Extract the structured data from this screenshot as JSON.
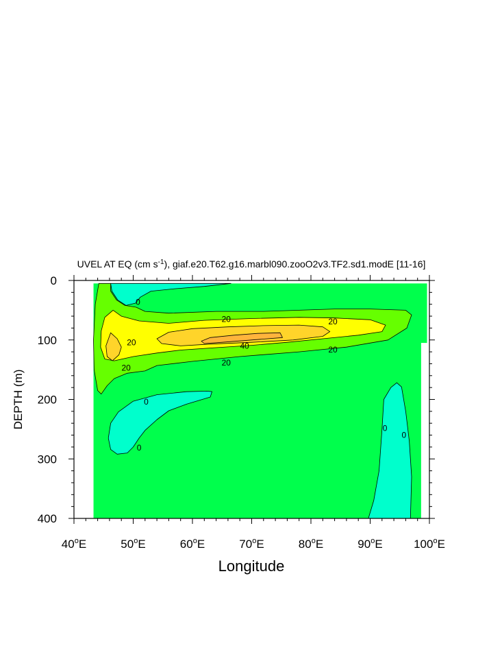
{
  "chart_data": {
    "type": "contour",
    "title_main": "UVEL AT EQ (cm s",
    "title_unit_exp": "-1",
    "title_rest": "), giaf.e20.T62.g16.marbl090.zooO2v3.TF2.sd1.modE [11-16]",
    "xlabel": "Longitude",
    "ylabel": "DEPTH (m)",
    "xlim": [
      40,
      100
    ],
    "ylim": [
      0,
      400
    ],
    "y_inverted": true,
    "x_ticks": [
      {
        "value": 40,
        "num": "40",
        "deg": "o",
        "hem": "E"
      },
      {
        "value": 50,
        "num": "50",
        "deg": "o",
        "hem": "E"
      },
      {
        "value": 60,
        "num": "60",
        "deg": "o",
        "hem": "E"
      },
      {
        "value": 70,
        "num": "70",
        "deg": "o",
        "hem": "E"
      },
      {
        "value": 80,
        "num": "80",
        "deg": "o",
        "hem": "E"
      },
      {
        "value": 90,
        "num": "90",
        "deg": "o",
        "hem": "E"
      },
      {
        "value": 100,
        "num": "100",
        "deg": "o",
        "hem": "E"
      }
    ],
    "y_ticks": [
      {
        "value": 0,
        "label": "0"
      },
      {
        "value": 100,
        "label": "100"
      },
      {
        "value": 200,
        "label": "200"
      },
      {
        "value": 300,
        "label": "300"
      },
      {
        "value": 400,
        "label": "400"
      }
    ],
    "data_extent": {
      "lon_min": 43.3,
      "lon_max": 99.6,
      "depth_top": 5
    },
    "fill_colors": {
      "negative": "#00ffcc",
      "zero_to_10": "#00ff4c",
      "10_to_20": "#66ff00",
      "20_to_30": "#ffff00",
      "30_to_40": "#ffd42a",
      "40_plus": "#ffb43c"
    },
    "regions": [
      {
        "level": "negative",
        "points": [
          [
            46.2,
            5
          ],
          [
            66.5,
            5
          ],
          [
            62,
            10
          ],
          [
            57,
            14
          ],
          [
            53,
            18
          ],
          [
            51.2,
            28
          ],
          [
            50.4,
            38
          ],
          [
            48.8,
            42
          ],
          [
            47.4,
            33
          ],
          [
            46.4,
            18
          ]
        ]
      },
      {
        "level": "negative",
        "points": [
          [
            50,
            203
          ],
          [
            54,
            192
          ],
          [
            59,
            187
          ],
          [
            62.5,
            186
          ],
          [
            63.3,
            187
          ],
          [
            63,
            196
          ],
          [
            59,
            208
          ],
          [
            56,
            219
          ],
          [
            54,
            234
          ],
          [
            52,
            252
          ],
          [
            51,
            265
          ],
          [
            50,
            280
          ],
          [
            49,
            290
          ],
          [
            47.3,
            292
          ],
          [
            46.2,
            284
          ],
          [
            45.8,
            265
          ],
          [
            46.2,
            240
          ],
          [
            47.5,
            221
          ]
        ]
      },
      {
        "level": "negative",
        "points": [
          [
            92.3,
            200
          ],
          [
            93.5,
            180
          ],
          [
            94.5,
            172
          ],
          [
            95.3,
            179
          ],
          [
            96,
            220
          ],
          [
            96.6,
            270
          ],
          [
            97,
            330
          ],
          [
            96.8,
            400
          ],
          [
            89.7,
            400
          ],
          [
            90.6,
            370
          ],
          [
            91.5,
            320
          ],
          [
            92,
            250
          ]
        ]
      },
      {
        "level": "10_to_20",
        "points": [
          [
            44.2,
            5
          ],
          [
            46.2,
            5
          ],
          [
            46.2,
            18
          ],
          [
            47.2,
            33
          ],
          [
            48.6,
            42
          ],
          [
            50.5,
            45
          ],
          [
            52,
            52
          ],
          [
            56,
            55
          ],
          [
            64,
            52
          ],
          [
            72,
            52
          ],
          [
            78,
            50
          ],
          [
            84,
            48
          ],
          [
            90,
            48
          ],
          [
            96,
            50
          ],
          [
            97,
            58
          ],
          [
            96.2,
            80
          ],
          [
            93,
            100
          ],
          [
            86,
            112
          ],
          [
            78,
            120
          ],
          [
            68,
            128
          ],
          [
            60,
            136
          ],
          [
            54,
            143
          ],
          [
            52,
            152
          ],
          [
            49,
            156
          ],
          [
            46.8,
            165
          ],
          [
            45.6,
            177
          ],
          [
            44.6,
            191
          ],
          [
            44,
            185
          ],
          [
            43.4,
            150
          ],
          [
            43.3,
            100
          ],
          [
            43.6,
            40
          ]
        ]
      },
      {
        "level": "20_to_30",
        "points": [
          [
            45.2,
            62
          ],
          [
            46.6,
            50
          ],
          [
            48,
            60
          ],
          [
            51,
            68
          ],
          [
            56,
            72
          ],
          [
            62,
            67
          ],
          [
            70,
            64
          ],
          [
            78,
            62
          ],
          [
            84,
            63
          ],
          [
            90,
            66
          ],
          [
            92.6,
            75
          ],
          [
            92,
            86
          ],
          [
            88,
            92
          ],
          [
            82,
            98
          ],
          [
            76,
            104
          ],
          [
            70,
            109
          ],
          [
            64,
            113
          ],
          [
            58,
            117
          ],
          [
            54,
            122
          ],
          [
            50,
            128
          ],
          [
            46.8,
            135
          ],
          [
            45.2,
            132
          ],
          [
            44.5,
            112
          ],
          [
            44.6,
            85
          ]
        ]
      },
      {
        "level": "30_to_40",
        "points": [
          [
            45.4,
            110
          ],
          [
            46.2,
            88
          ],
          [
            47.3,
            98
          ],
          [
            48,
            112
          ],
          [
            47.6,
            125
          ],
          [
            46.5,
            135
          ],
          [
            45.6,
            128
          ]
        ]
      },
      {
        "level": "30_to_40",
        "points": [
          [
            54,
            98
          ],
          [
            56,
            87
          ],
          [
            60,
            81
          ],
          [
            66,
            78
          ],
          [
            72,
            76
          ],
          [
            78,
            75
          ],
          [
            82,
            78
          ],
          [
            83.2,
            86
          ],
          [
            82,
            94
          ],
          [
            77,
            100
          ],
          [
            70,
            104
          ],
          [
            63,
            107
          ],
          [
            58,
            110
          ],
          [
            54.8,
            106
          ]
        ]
      },
      {
        "level": "40_plus",
        "points": [
          [
            61.5,
            102
          ],
          [
            63,
            96
          ],
          [
            67,
            92
          ],
          [
            71,
            89
          ],
          [
            74.8,
            88
          ],
          [
            75.2,
            96
          ],
          [
            70,
            100
          ],
          [
            65,
            104
          ],
          [
            62,
            106
          ]
        ]
      }
    ],
    "contour_labels": [
      {
        "text": "0",
        "lon": 50.8,
        "depth": 35
      },
      {
        "text": "20",
        "lon": 65.7,
        "depth": 64
      },
      {
        "text": "20",
        "lon": 83.7,
        "depth": 68
      },
      {
        "text": "20",
        "lon": 49.7,
        "depth": 103
      },
      {
        "text": "40",
        "lon": 68.8,
        "depth": 109
      },
      {
        "text": "20",
        "lon": 83.7,
        "depth": 115
      },
      {
        "text": "20",
        "lon": 65.7,
        "depth": 137
      },
      {
        "text": "20",
        "lon": 48.8,
        "depth": 146
      },
      {
        "text": "0",
        "lon": 52.2,
        "depth": 203
      },
      {
        "text": "0",
        "lon": 92.5,
        "depth": 247
      },
      {
        "text": "0",
        "lon": 95.7,
        "depth": 259
      },
      {
        "text": "0",
        "lon": 51,
        "depth": 280
      }
    ]
  }
}
